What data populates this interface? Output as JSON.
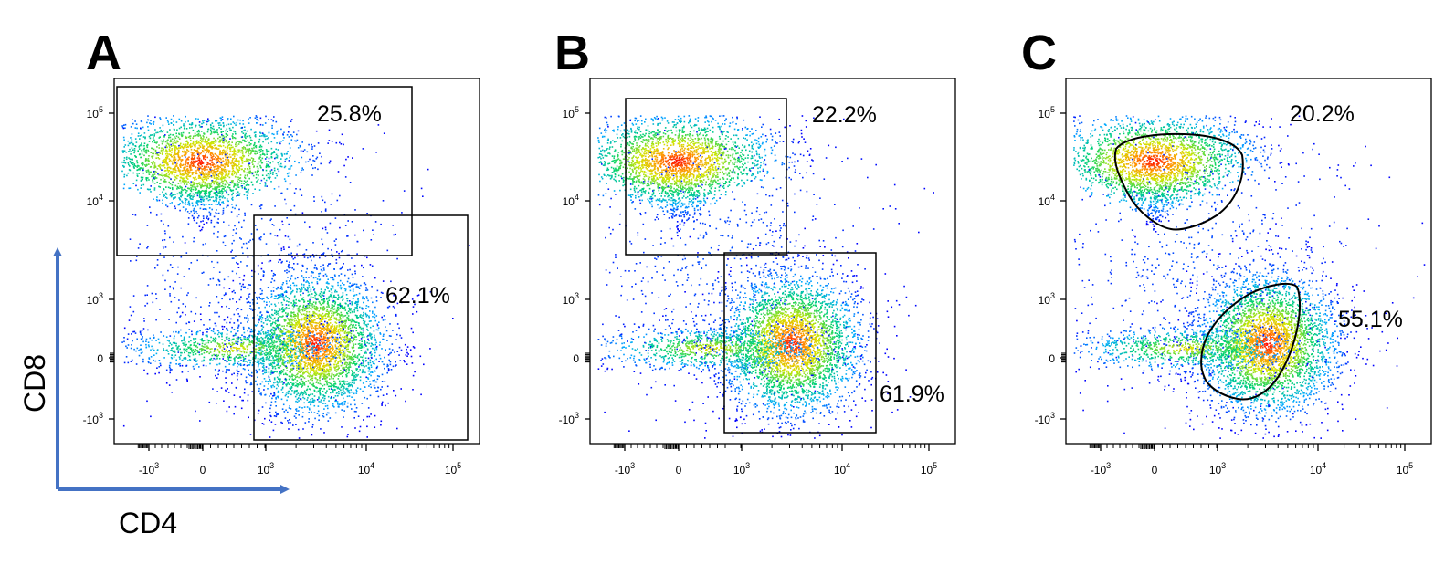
{
  "chart_data": [
    {
      "type": "scatter",
      "panel": "A",
      "xlabel": "CD4",
      "ylabel": "CD8",
      "x_ticks": [
        "-10^3",
        "0",
        "10^3",
        "10^4",
        "10^5"
      ],
      "y_ticks": [
        "10^5",
        "10^4",
        "10^3",
        "0",
        "-10^3"
      ],
      "populations": [
        {
          "x": 0.2,
          "y": 25000
        },
        {
          "x": 2500,
          "y": 200
        }
      ],
      "gates": [
        {
          "shape": "rectangle",
          "label": "25.8%",
          "x_range": [
            -1500,
            40000
          ],
          "y_range": [
            3000,
            180000
          ]
        },
        {
          "shape": "rectangle",
          "label": "62.1%",
          "x_range": [
            900,
            180000
          ],
          "y_range": [
            -1600,
            7000
          ]
        }
      ]
    },
    {
      "type": "scatter",
      "panel": "B",
      "xlabel": "",
      "ylabel": "",
      "x_ticks": [
        "-10^3",
        "0",
        "10^3",
        "10^4",
        "10^5"
      ],
      "y_ticks": [
        "10^5",
        "10^4",
        "10^3",
        "0",
        "-10^3"
      ],
      "populations": [
        {
          "x": 0.2,
          "y": 25000
        },
        {
          "x": 2500,
          "y": 200
        }
      ],
      "gates": [
        {
          "shape": "rectangle",
          "label": "22.2%",
          "x_range": [
            -800,
            3000
          ],
          "y_range": [
            3000,
            130000
          ]
        },
        {
          "shape": "rectangle",
          "label": "61.9%",
          "x_range": [
            800,
            30000
          ],
          "y_range": [
            -1600,
            3000
          ]
        }
      ]
    },
    {
      "type": "scatter",
      "panel": "C",
      "xlabel": "",
      "ylabel": "",
      "x_ticks": [
        "-10^3",
        "0",
        "10^3",
        "10^4",
        "10^5"
      ],
      "y_ticks": [
        "10^5",
        "10^4",
        "10^3",
        "0",
        "-10^3"
      ],
      "populations": [
        {
          "x": 0.2,
          "y": 25000
        },
        {
          "x": 2500,
          "y": 200
        }
      ],
      "gates": [
        {
          "shape": "polygon",
          "label": "20.2%"
        },
        {
          "shape": "polygon",
          "label": "55.1%"
        }
      ]
    }
  ],
  "colors": {
    "low": "#0000ff",
    "mid": "#00cc66",
    "high": "#ff0000",
    "arrow": "#4472c4"
  }
}
